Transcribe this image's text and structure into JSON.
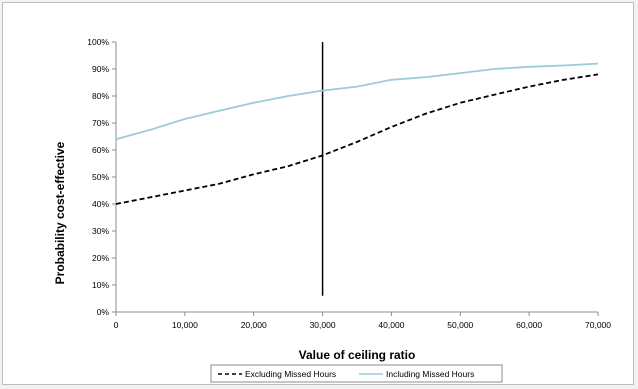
{
  "chart_data": {
    "type": "line",
    "title": "",
    "xlabel": "Value of ceiling ratio",
    "ylabel": "Probability cost-effective",
    "xlim": [
      0,
      70000
    ],
    "ylim": [
      0,
      100
    ],
    "x_ticks": [
      "0",
      "10,000",
      "20,000",
      "30,000",
      "40,000",
      "50,000",
      "60,000",
      "70,000"
    ],
    "y_ticks": [
      "0%",
      "10%",
      "20%",
      "30%",
      "40%",
      "50%",
      "60%",
      "70%",
      "80%",
      "90%",
      "100%"
    ],
    "grid": false,
    "legend_position": "bottom",
    "x": [
      0,
      5000,
      10000,
      15000,
      20000,
      25000,
      30000,
      35000,
      40000,
      45000,
      50000,
      55000,
      60000,
      65000,
      70000
    ],
    "series": [
      {
        "name": "Excluding Missed Hours",
        "style": "dashed",
        "color": "#000000",
        "values": [
          40,
          42.5,
          45,
          47.5,
          51,
          54,
          58,
          63,
          68.5,
          73.5,
          77.5,
          80.5,
          83.5,
          86,
          88
        ]
      },
      {
        "name": "Including Missed Hours",
        "style": "solid",
        "color": "#9ccbd9",
        "values": [
          64,
          67.5,
          71.5,
          74.5,
          77.5,
          80,
          82,
          83.5,
          86,
          87,
          88.5,
          90,
          90.8,
          91.3,
          92
        ]
      }
    ],
    "reference_line": {
      "x": 30000,
      "y_range": [
        6,
        100
      ],
      "color": "#000000"
    }
  }
}
